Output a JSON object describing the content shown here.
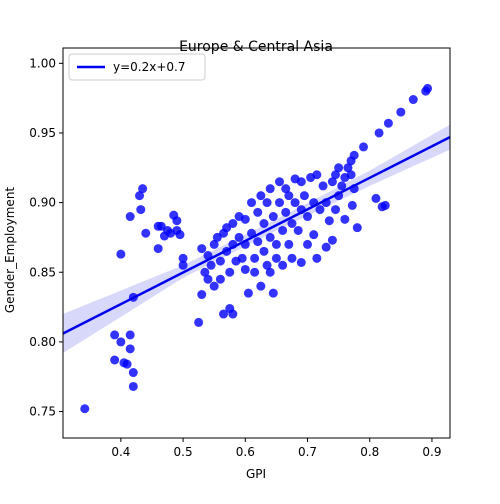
{
  "chart_data": {
    "type": "scatter",
    "title": "Europe & Central Asia",
    "xlabel": "GPI",
    "ylabel": "Gender_Employment",
    "color": "#0000ff",
    "x": [
      0.342,
      0.39,
      0.39,
      0.4,
      0.405,
      0.41,
      0.415,
      0.415,
      0.42,
      0.42,
      0.4,
      0.415,
      0.42,
      0.43,
      0.435,
      0.432,
      0.44,
      0.46,
      0.465,
      0.46,
      0.47,
      0.475,
      0.485,
      0.49,
      0.49,
      0.495,
      0.48,
      0.5,
      0.5,
      0.525,
      0.53,
      0.53,
      0.535,
      0.54,
      0.54,
      0.545,
      0.55,
      0.55,
      0.555,
      0.56,
      0.56,
      0.565,
      0.565,
      0.57,
      0.57,
      0.575,
      0.575,
      0.58,
      0.58,
      0.585,
      0.59,
      0.59,
      0.595,
      0.6,
      0.6,
      0.6,
      0.605,
      0.61,
      0.61,
      0.615,
      0.615,
      0.62,
      0.62,
      0.625,
      0.625,
      0.63,
      0.63,
      0.635,
      0.635,
      0.64,
      0.64,
      0.64,
      0.645,
      0.645,
      0.65,
      0.65,
      0.655,
      0.655,
      0.66,
      0.66,
      0.665,
      0.665,
      0.67,
      0.67,
      0.675,
      0.675,
      0.68,
      0.68,
      0.685,
      0.69,
      0.69,
      0.69,
      0.695,
      0.7,
      0.7,
      0.705,
      0.71,
      0.71,
      0.715,
      0.715,
      0.72,
      0.725,
      0.73,
      0.73,
      0.735,
      0.74,
      0.74,
      0.745,
      0.745,
      0.75,
      0.75,
      0.755,
      0.76,
      0.76,
      0.765,
      0.77,
      0.77,
      0.772,
      0.775,
      0.775,
      0.78,
      0.79,
      0.81,
      0.815,
      0.82,
      0.825,
      0.83,
      0.85,
      0.87,
      0.89,
      0.893,
      0.58
    ],
    "y": [
      0.752,
      0.805,
      0.787,
      0.8,
      0.785,
      0.784,
      0.805,
      0.795,
      0.778,
      0.768,
      0.863,
      0.89,
      0.832,
      0.905,
      0.91,
      0.895,
      0.878,
      0.883,
      0.883,
      0.867,
      0.876,
      0.88,
      0.891,
      0.887,
      0.88,
      0.877,
      0.878,
      0.86,
      0.855,
      0.814,
      0.867,
      0.834,
      0.85,
      0.862,
      0.845,
      0.855,
      0.87,
      0.84,
      0.875,
      0.858,
      0.845,
      0.82,
      0.878,
      0.882,
      0.865,
      0.85,
      0.824,
      0.885,
      0.87,
      0.858,
      0.89,
      0.875,
      0.86,
      0.888,
      0.87,
      0.852,
      0.835,
      0.9,
      0.878,
      0.86,
      0.85,
      0.893,
      0.872,
      0.84,
      0.905,
      0.885,
      0.865,
      0.855,
      0.9,
      0.91,
      0.875,
      0.85,
      0.835,
      0.89,
      0.87,
      0.86,
      0.915,
      0.9,
      0.88,
      0.855,
      0.91,
      0.893,
      0.905,
      0.87,
      0.885,
      0.86,
      0.917,
      0.9,
      0.88,
      0.915,
      0.895,
      0.857,
      0.905,
      0.89,
      0.87,
      0.918,
      0.9,
      0.877,
      0.92,
      0.86,
      0.895,
      0.912,
      0.9,
      0.868,
      0.887,
      0.915,
      0.873,
      0.92,
      0.895,
      0.905,
      0.925,
      0.912,
      0.918,
      0.888,
      0.925,
      0.92,
      0.93,
      0.898,
      0.91,
      0.934,
      0.882,
      0.94,
      0.903,
      0.95,
      0.897,
      0.898,
      0.957,
      0.965,
      0.974,
      0.98,
      0.982,
      0.82
    ],
    "fit": {
      "label": "y=0.2x+0.7",
      "color": "#0000ee",
      "band_color": "#c8c8f8",
      "x": [
        0.307,
        0.5,
        0.65,
        0.8,
        0.929
      ],
      "y": [
        0.806,
        0.8498,
        0.8838,
        0.9178,
        0.947
      ],
      "lower": [
        0.792,
        0.846,
        0.88,
        0.912,
        0.938
      ],
      "upper": [
        0.82,
        0.855,
        0.888,
        0.923,
        0.956
      ]
    },
    "legend": "upper left",
    "xlim": [
      0.307,
      0.929
    ],
    "ylim": [
      0.731,
      1.011
    ],
    "xticks": [
      0.4,
      0.5,
      0.6,
      0.7,
      0.8,
      0.9
    ],
    "yticks": [
      0.75,
      {
        "value": 0.8,
        "label": "0.80"
      },
      0.85,
      {
        "value": 0.9,
        "label": "0.90"
      },
      0.95,
      {
        "value": 1.0,
        "label": "1.00"
      }
    ]
  }
}
